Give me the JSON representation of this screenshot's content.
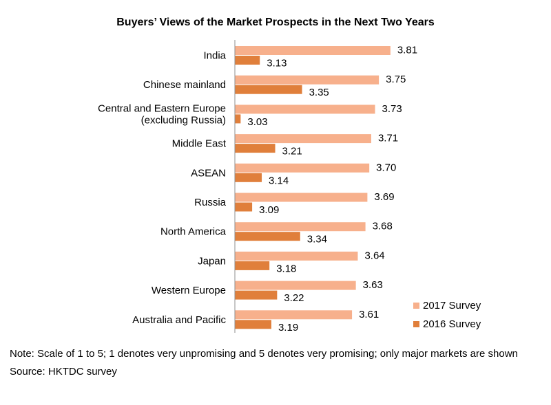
{
  "chart_data": {
    "type": "bar",
    "orientation": "horizontal",
    "title": "Buyers’ Views of the Market Prospects in the Next Two Years",
    "categories": [
      [
        "India"
      ],
      [
        "Chinese mainland"
      ],
      [
        "Central and Eastern Europe",
        "(excluding Russia)"
      ],
      [
        "Middle East"
      ],
      [
        "ASEAN"
      ],
      [
        "Russia"
      ],
      [
        "North America"
      ],
      [
        "Japan"
      ],
      [
        "Western Europe"
      ],
      [
        "Australia and Pacific"
      ]
    ],
    "series": [
      {
        "name": "2017 Survey",
        "color": "#f7b08c",
        "values": [
          3.81,
          3.75,
          3.73,
          3.71,
          3.7,
          3.69,
          3.68,
          3.64,
          3.63,
          3.61
        ],
        "labels": [
          "3.81",
          "3.75",
          "3.73",
          "3.71",
          "3.70",
          "3.69",
          "3.68",
          "3.64",
          "3.63",
          "3.61"
        ]
      },
      {
        "name": "2016 Survey",
        "color": "#e07f3b",
        "values": [
          3.13,
          3.35,
          3.03,
          3.21,
          3.14,
          3.09,
          3.34,
          3.18,
          3.22,
          3.19
        ],
        "labels": [
          "3.13",
          "3.35",
          "3.03",
          "3.21",
          "3.14",
          "3.09",
          "3.34",
          "3.18",
          "3.22",
          "3.19"
        ]
      }
    ],
    "xlim": [
      3.0,
      3.85
    ],
    "legend_position": "bottom-right",
    "grid": false
  },
  "notes": {
    "note": "Note: Scale of 1 to 5; 1 denotes very unpromising and 5 denotes very promising; only major markets are shown",
    "source": "Source: HKTDC survey"
  }
}
